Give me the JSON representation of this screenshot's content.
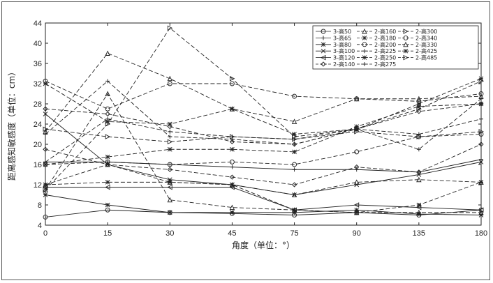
{
  "chart_data": {
    "type": "line",
    "xlabel": "角度（单位：°）",
    "ylabel": "距离感知敏感度（单位：cm）",
    "categories": [
      "0",
      "15",
      "30",
      "45",
      "75",
      "90",
      "135",
      "180"
    ],
    "ylim": [
      4,
      44
    ],
    "yticks": [
      4,
      8,
      12,
      16,
      20,
      24,
      28,
      32,
      36,
      40,
      44
    ],
    "grid": false,
    "legend_position": "top-right",
    "series": [
      {
        "name": "3-高50",
        "values": [
          5.6,
          7.0,
          6.5,
          6.3,
          6.0,
          6.5,
          6.0,
          7.0
        ]
      },
      {
        "name": "3-高65",
        "values": [
          16.5,
          16.5,
          16.0,
          15.5,
          15.0,
          15.0,
          14.5,
          17.0
        ]
      },
      {
        "name": "3-高80",
        "values": [
          10.0,
          8.0,
          6.5,
          6.5,
          6.5,
          7.0,
          6.2,
          6.0
        ]
      },
      {
        "name": "3-高100",
        "values": [
          26.0,
          16.0,
          13.0,
          12.0,
          10.0,
          12.0,
          14.0,
          16.5
        ]
      },
      {
        "name": "3-高120",
        "values": [
          11.5,
          11.5,
          11.5,
          11.5,
          7.0,
          8.0,
          7.5,
          7.0
        ]
      },
      {
        "name": "2-高140",
        "values": [
          19.0,
          16.0,
          15.0,
          13.5,
          12.0,
          15.5,
          14.5,
          20.0
        ]
      },
      {
        "name": "2-高160",
        "values": [
          12.0,
          16.0,
          12.5,
          12.0,
          10.0,
          12.5,
          13.0,
          12.5
        ]
      },
      {
        "name": "2-高180",
        "values": [
          12.0,
          12.5,
          12.5,
          12.0,
          7.0,
          6.5,
          8.0,
          12.5
        ]
      },
      {
        "name": "2-高200",
        "values": [
          16.0,
          16.5,
          16.0,
          16.5,
          16.0,
          18.5,
          21.5,
          22.0
        ]
      },
      {
        "name": "2-高225",
        "values": [
          22.0,
          32.5,
          21.5,
          21.0,
          20.0,
          23.0,
          19.0,
          29.0
        ]
      },
      {
        "name": "2-高250",
        "values": [
          16.0,
          17.5,
          19.0,
          19.0,
          18.5,
          23.5,
          27.5,
          28.0
        ]
      },
      {
        "name": "2-高275",
        "values": [
          16.5,
          25.0,
          22.5,
          21.5,
          21.0,
          23.0,
          22.0,
          25.0
        ]
      },
      {
        "name": "2-高300",
        "values": [
          23.0,
          21.5,
          20.5,
          21.5,
          21.0,
          22.5,
          21.5,
          22.5
        ]
      },
      {
        "name": "2-高340",
        "values": [
          32.5,
          27.0,
          32.0,
          32.0,
          29.5,
          29.0,
          28.5,
          30.0
        ]
      },
      {
        "name": "2-高330",
        "values": [
          22.5,
          38.0,
          33.0,
          27.0,
          24.5,
          29.0,
          29.0,
          29.5
        ]
      },
      {
        "name": "2-高425",
        "values": [
          32.0,
          24.5,
          24.0,
          27.0,
          22.0,
          23.0,
          28.0,
          33.0
        ]
      },
      {
        "name": "2-高485",
        "values": [
          11.0,
          24.0,
          43.0,
          33.0,
          21.5,
          23.0,
          27.0,
          32.5
        ]
      },
      {
        "name": "",
        "values": [
          11.0,
          30.0,
          9.0,
          7.5,
          7.0,
          6.5,
          6.5,
          6.5
        ]
      },
      {
        "name": "",
        "values": [
          27.0,
          26.0,
          23.5,
          20.5,
          20.0,
          23.0,
          26.5,
          28.0
        ]
      }
    ],
    "markers": [
      "o",
      "+",
      "*",
      "x",
      "triangle-left",
      "diamond",
      "triangle-up",
      "star",
      "circle",
      "plus",
      "star",
      "plus",
      "triangle-right",
      "circle",
      "triangle-up",
      "star",
      "triangle-right",
      "triangle-up",
      "diamond"
    ],
    "dashed": [
      false,
      false,
      false,
      false,
      false,
      true,
      true,
      true,
      true,
      true,
      true,
      true,
      true,
      true,
      true,
      true,
      true,
      true,
      true
    ]
  }
}
